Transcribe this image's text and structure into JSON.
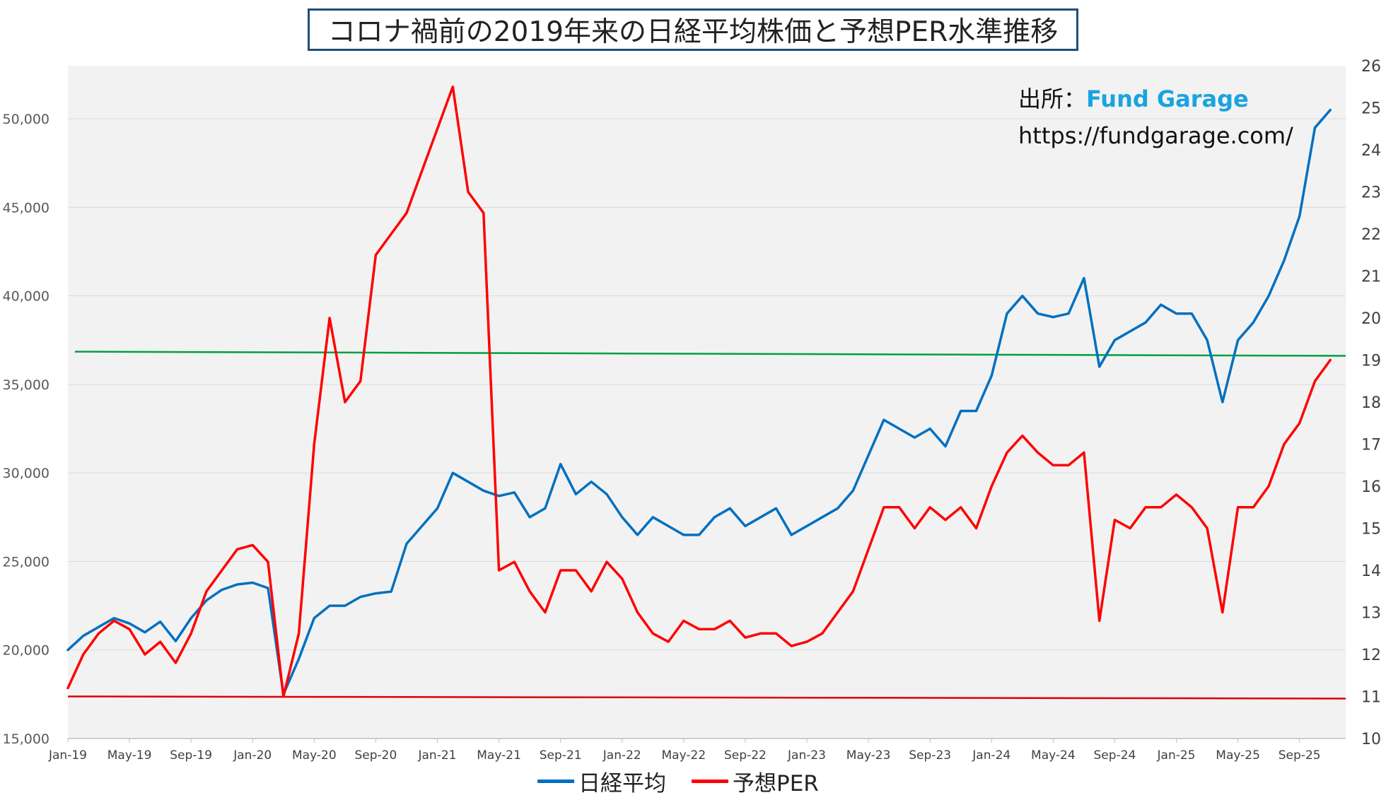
{
  "title": "コロナ禍前の2019年来の日経平均株価と予想PER水準推移",
  "source": {
    "label": "出所：",
    "brand": "Fund Garage",
    "url": "https://fundgarage.com/"
  },
  "colors": {
    "nikkei": "#0070c0",
    "per": "#ff0000",
    "per_guide": "#e00000",
    "reference": "#00a040",
    "plot_bg": "#f2f2f2",
    "grid": "#d9d9d9"
  },
  "chart_data": {
    "type": "line",
    "title": "コロナ禍前の2019年来の日経平均株価と予想PER水準推移",
    "x_axis": {
      "ticks": [
        "Jan-19",
        "May-19",
        "Sep-19",
        "Jan-20",
        "May-20",
        "Sep-20",
        "Jan-21",
        "May-21",
        "Sep-21",
        "Jan-22",
        "May-22",
        "Sep-22",
        "Jan-23",
        "May-23",
        "Sep-23",
        "Jan-24",
        "May-24",
        "Sep-24",
        "Jan-25",
        "May-25",
        "Sep-25"
      ],
      "range": [
        "2019-01",
        "2025-12"
      ]
    },
    "y_left": {
      "ticks": [
        "15,000",
        "20,000",
        "25,000",
        "30,000",
        "35,000",
        "40,000",
        "45,000",
        "50,000"
      ],
      "min": 15000,
      "max": 53000
    },
    "y_right": {
      "ticks": [
        "10",
        "11",
        "12",
        "13",
        "14",
        "15",
        "16",
        "17",
        "18",
        "19",
        "20",
        "21",
        "22",
        "23",
        "24",
        "25",
        "26"
      ],
      "min": 10,
      "max": 26
    },
    "grid": "horizontal",
    "legend_position": "bottom",
    "legend": [
      "日経平均",
      "予想PER"
    ],
    "series": [
      {
        "name": "日経平均",
        "axis": "left",
        "x": [
          "2019-01",
          "2019-02",
          "2019-03",
          "2019-04",
          "2019-05",
          "2019-06",
          "2019-07",
          "2019-08",
          "2019-09",
          "2019-10",
          "2019-11",
          "2019-12",
          "2020-01",
          "2020-02",
          "2020-03",
          "2020-04",
          "2020-05",
          "2020-06",
          "2020-07",
          "2020-08",
          "2020-09",
          "2020-10",
          "2020-11",
          "2020-12",
          "2021-01",
          "2021-02",
          "2021-03",
          "2021-04",
          "2021-05",
          "2021-06",
          "2021-07",
          "2021-08",
          "2021-09",
          "2021-10",
          "2021-11",
          "2021-12",
          "2022-01",
          "2022-02",
          "2022-03",
          "2022-04",
          "2022-05",
          "2022-06",
          "2022-07",
          "2022-08",
          "2022-09",
          "2022-10",
          "2022-11",
          "2022-12",
          "2023-01",
          "2023-02",
          "2023-03",
          "2023-04",
          "2023-05",
          "2023-06",
          "2023-07",
          "2023-08",
          "2023-09",
          "2023-10",
          "2023-11",
          "2023-12",
          "2024-01",
          "2024-02",
          "2024-03",
          "2024-04",
          "2024-05",
          "2024-06",
          "2024-07",
          "2024-08",
          "2024-09",
          "2024-10",
          "2024-11",
          "2024-12",
          "2025-01",
          "2025-02",
          "2025-03",
          "2025-04",
          "2025-05",
          "2025-06",
          "2025-07",
          "2025-08",
          "2025-09",
          "2025-10",
          "2025-11"
        ],
        "values": [
          20000,
          20800,
          21300,
          21800,
          21500,
          21000,
          21600,
          20500,
          21800,
          22800,
          23400,
          23700,
          23800,
          23500,
          17500,
          19500,
          21800,
          22500,
          22500,
          23000,
          23200,
          23300,
          26000,
          27000,
          28000,
          30000,
          29500,
          29000,
          28700,
          28900,
          27500,
          28000,
          30500,
          28800,
          29500,
          28800,
          27500,
          26500,
          27500,
          27000,
          26500,
          26500,
          27500,
          28000,
          27000,
          27500,
          28000,
          26500,
          27000,
          27500,
          28000,
          29000,
          31000,
          33000,
          32500,
          32000,
          32500,
          31500,
          33500,
          33500,
          35500,
          39000,
          40000,
          39000,
          38800,
          39000,
          41000,
          36000,
          37500,
          38000,
          38500,
          39500,
          39000,
          39000,
          37500,
          34000,
          37500,
          38500,
          40000,
          42000,
          44500,
          49500,
          50500
        ]
      },
      {
        "name": "予想PER",
        "axis": "right",
        "x": [
          "2019-01",
          "2019-02",
          "2019-03",
          "2019-04",
          "2019-05",
          "2019-06",
          "2019-07",
          "2019-08",
          "2019-09",
          "2019-10",
          "2019-11",
          "2019-12",
          "2020-01",
          "2020-02",
          "2020-03",
          "2020-04",
          "2020-05",
          "2020-06",
          "2020-07",
          "2020-08",
          "2020-09",
          "2020-10",
          "2020-11",
          "2020-12",
          "2021-01",
          "2021-02",
          "2021-03",
          "2021-04",
          "2021-05",
          "2021-06",
          "2021-07",
          "2021-08",
          "2021-09",
          "2021-10",
          "2021-11",
          "2021-12",
          "2022-01",
          "2022-02",
          "2022-03",
          "2022-04",
          "2022-05",
          "2022-06",
          "2022-07",
          "2022-08",
          "2022-09",
          "2022-10",
          "2022-11",
          "2022-12",
          "2023-01",
          "2023-02",
          "2023-03",
          "2023-04",
          "2023-05",
          "2023-06",
          "2023-07",
          "2023-08",
          "2023-09",
          "2023-10",
          "2023-11",
          "2023-12",
          "2024-01",
          "2024-02",
          "2024-03",
          "2024-04",
          "2024-05",
          "2024-06",
          "2024-07",
          "2024-08",
          "2024-09",
          "2024-10",
          "2024-11",
          "2024-12",
          "2025-01",
          "2025-02",
          "2025-03",
          "2025-04",
          "2025-05",
          "2025-06",
          "2025-07",
          "2025-08",
          "2025-09",
          "2025-10",
          "2025-11"
        ],
        "values": [
          11.2,
          12.0,
          12.5,
          12.8,
          12.6,
          12.0,
          12.3,
          11.8,
          12.5,
          13.5,
          14.0,
          14.5,
          14.6,
          14.2,
          11.0,
          12.5,
          17.0,
          20.0,
          18.0,
          18.5,
          21.5,
          22.0,
          22.5,
          23.5,
          24.5,
          25.5,
          23.0,
          22.5,
          14.0,
          14.2,
          13.5,
          13.0,
          14.0,
          14.0,
          13.5,
          14.2,
          13.8,
          13.0,
          12.5,
          12.3,
          12.8,
          12.6,
          12.6,
          12.8,
          12.4,
          12.5,
          12.5,
          12.2,
          12.3,
          12.5,
          13.0,
          13.5,
          14.5,
          15.5,
          15.5,
          15.0,
          15.5,
          15.2,
          15.5,
          15.0,
          16.0,
          16.8,
          17.2,
          16.8,
          16.5,
          16.5,
          16.8,
          12.8,
          15.2,
          15.0,
          15.5,
          15.5,
          15.8,
          15.5,
          15.0,
          13.0,
          15.5,
          15.5,
          16.0,
          17.0,
          17.5,
          18.5,
          19.0
        ]
      }
    ],
    "reference_lines": [
      {
        "axis": "right",
        "from": 19.2,
        "to": 19.1
      },
      {
        "axis": "right",
        "from": 11.0,
        "to": 10.95
      }
    ]
  }
}
